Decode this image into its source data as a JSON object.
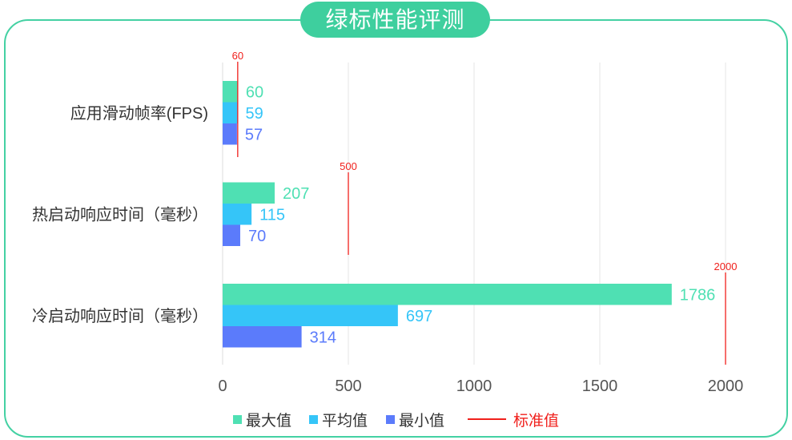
{
  "title": "绿标性能评测",
  "colors": {
    "frame": "#44d1a3",
    "title_bg": "#3ecf9e",
    "grid": "#e6e6e6",
    "axis": "#dcdcdc",
    "tick_text": "#555555",
    "category_text": "#333333"
  },
  "chart_data": {
    "type": "bar",
    "orientation": "horizontal",
    "categories": [
      "应用滑动帧率(FPS)",
      "热启动响应时间（毫秒）",
      "冷启动响应时间（毫秒）"
    ],
    "series": [
      {
        "name": "最大值",
        "values": [
          60,
          207,
          1786
        ],
        "color": "#4fe0b3"
      },
      {
        "name": "平均值",
        "values": [
          59,
          115,
          697
        ],
        "color": "#35c5f8"
      },
      {
        "name": "最小值",
        "values": [
          57,
          70,
          314
        ],
        "color": "#5b7bfb"
      }
    ],
    "reference": {
      "name": "标准值",
      "values": [
        60,
        500,
        2000
      ],
      "color": "#f0201c"
    },
    "xticks": [
      0,
      500,
      1000,
      1500,
      2000
    ],
    "xlim": [
      0,
      2000
    ],
    "grid": "vertical",
    "legend": "bottom",
    "data_labels": true
  }
}
